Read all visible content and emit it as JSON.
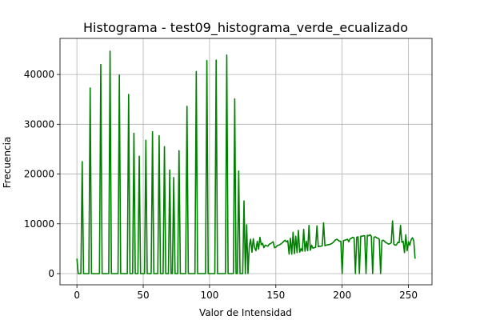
{
  "chart_data": {
    "type": "line",
    "title": "Histograma - test09_histograma_verde_ecualizado",
    "xlabel": "Valor de Intensidad",
    "ylabel": "Frecuencia",
    "xlim": [
      -12.75,
      267.75
    ],
    "ylim": [
      -2250,
      47250
    ],
    "xticks": [
      0,
      50,
      100,
      150,
      200,
      250
    ],
    "yticks": [
      0,
      10000,
      20000,
      30000,
      40000
    ],
    "grid": true,
    "colors": {
      "line": "#008000",
      "grid": "#b0b0b0",
      "axes": "#000000"
    },
    "series": [
      {
        "points": [
          [
            0,
            3000
          ],
          [
            1,
            0
          ],
          [
            2,
            0
          ],
          [
            3,
            0
          ],
          [
            4,
            22500
          ],
          [
            5,
            0
          ],
          [
            6,
            0
          ],
          [
            7,
            0
          ],
          [
            8,
            0
          ],
          [
            9,
            0
          ],
          [
            10,
            37300
          ],
          [
            11,
            0
          ],
          [
            12,
            0
          ],
          [
            13,
            0
          ],
          [
            14,
            0
          ],
          [
            15,
            0
          ],
          [
            16,
            0
          ],
          [
            17,
            0
          ],
          [
            18,
            42000
          ],
          [
            19,
            0
          ],
          [
            20,
            0
          ],
          [
            21,
            0
          ],
          [
            22,
            0
          ],
          [
            23,
            0
          ],
          [
            24,
            0
          ],
          [
            25,
            44700
          ],
          [
            26,
            0
          ],
          [
            27,
            0
          ],
          [
            28,
            0
          ],
          [
            29,
            0
          ],
          [
            30,
            0
          ],
          [
            31,
            0
          ],
          [
            32,
            39900
          ],
          [
            33,
            0
          ],
          [
            34,
            0
          ],
          [
            35,
            0
          ],
          [
            36,
            0
          ],
          [
            37,
            0
          ],
          [
            38,
            0
          ],
          [
            39,
            36000
          ],
          [
            40,
            0
          ],
          [
            41,
            0
          ],
          [
            42,
            0
          ],
          [
            43,
            28200
          ],
          [
            44,
            0
          ],
          [
            45,
            0
          ],
          [
            46,
            0
          ],
          [
            47,
            23600
          ],
          [
            48,
            0
          ],
          [
            49,
            0
          ],
          [
            50,
            0
          ],
          [
            51,
            0
          ],
          [
            52,
            26800
          ],
          [
            53,
            0
          ],
          [
            54,
            0
          ],
          [
            55,
            0
          ],
          [
            56,
            0
          ],
          [
            57,
            28500
          ],
          [
            58,
            0
          ],
          [
            59,
            0
          ],
          [
            60,
            0
          ],
          [
            61,
            0
          ],
          [
            62,
            27700
          ],
          [
            63,
            0
          ],
          [
            64,
            0
          ],
          [
            65,
            0
          ],
          [
            66,
            25500
          ],
          [
            67,
            0
          ],
          [
            68,
            0
          ],
          [
            69,
            0
          ],
          [
            70,
            20800
          ],
          [
            71,
            0
          ],
          [
            72,
            0
          ],
          [
            73,
            19300
          ],
          [
            74,
            0
          ],
          [
            75,
            0
          ],
          [
            76,
            0
          ],
          [
            77,
            24700
          ],
          [
            78,
            0
          ],
          [
            79,
            0
          ],
          [
            80,
            0
          ],
          [
            81,
            0
          ],
          [
            82,
            0
          ],
          [
            83,
            33600
          ],
          [
            84,
            0
          ],
          [
            85,
            0
          ],
          [
            86,
            0
          ],
          [
            87,
            0
          ],
          [
            88,
            0
          ],
          [
            89,
            0
          ],
          [
            90,
            40600
          ],
          [
            91,
            0
          ],
          [
            92,
            0
          ],
          [
            93,
            0
          ],
          [
            94,
            0
          ],
          [
            95,
            0
          ],
          [
            96,
            0
          ],
          [
            97,
            0
          ],
          [
            98,
            42800
          ],
          [
            99,
            0
          ],
          [
            100,
            0
          ],
          [
            101,
            0
          ],
          [
            102,
            0
          ],
          [
            103,
            0
          ],
          [
            104,
            0
          ],
          [
            105,
            42900
          ],
          [
            106,
            0
          ],
          [
            107,
            0
          ],
          [
            108,
            0
          ],
          [
            109,
            0
          ],
          [
            110,
            0
          ],
          [
            111,
            0
          ],
          [
            112,
            0
          ],
          [
            113,
            43900
          ],
          [
            114,
            0
          ],
          [
            115,
            0
          ],
          [
            116,
            0
          ],
          [
            117,
            0
          ],
          [
            118,
            0
          ],
          [
            119,
            35100
          ],
          [
            120,
            0
          ],
          [
            121,
            0
          ],
          [
            122,
            20600
          ],
          [
            123,
            0
          ],
          [
            124,
            0
          ],
          [
            125,
            0
          ],
          [
            126,
            14600
          ],
          [
            127,
            0
          ],
          [
            128,
            9800
          ],
          [
            129,
            0
          ],
          [
            130,
            5600
          ],
          [
            131,
            6900
          ],
          [
            132,
            4300
          ],
          [
            133,
            7000
          ],
          [
            134,
            5200
          ],
          [
            135,
            4600
          ],
          [
            136,
            6500
          ],
          [
            137,
            4900
          ],
          [
            138,
            7300
          ],
          [
            139,
            5800
          ],
          [
            140,
            6100
          ],
          [
            141,
            5200
          ],
          [
            142,
            5700
          ],
          [
            143,
            5600
          ],
          [
            144,
            5500
          ],
          [
            145,
            5900
          ],
          [
            146,
            6000
          ],
          [
            147,
            6200
          ],
          [
            148,
            6400
          ],
          [
            149,
            5200
          ],
          [
            150,
            5300
          ],
          [
            151,
            5600
          ],
          [
            152,
            5700
          ],
          [
            153,
            5800
          ],
          [
            154,
            6000
          ],
          [
            155,
            6200
          ],
          [
            156,
            6500
          ],
          [
            157,
            6700
          ],
          [
            158,
            6400
          ],
          [
            159,
            6600
          ],
          [
            160,
            3900
          ],
          [
            161,
            7100
          ],
          [
            162,
            3900
          ],
          [
            163,
            8300
          ],
          [
            164,
            4000
          ],
          [
            165,
            7500
          ],
          [
            166,
            4200
          ],
          [
            167,
            8700
          ],
          [
            168,
            4300
          ],
          [
            169,
            5000
          ],
          [
            170,
            4500
          ],
          [
            171,
            8900
          ],
          [
            172,
            4500
          ],
          [
            173,
            6500
          ],
          [
            174,
            4600
          ],
          [
            175,
            9700
          ],
          [
            176,
            4700
          ],
          [
            177,
            5700
          ],
          [
            178,
            5100
          ],
          [
            179,
            5200
          ],
          [
            180,
            5300
          ],
          [
            181,
            9600
          ],
          [
            182,
            5400
          ],
          [
            183,
            5500
          ],
          [
            184,
            5500
          ],
          [
            185,
            5600
          ],
          [
            186,
            10200
          ],
          [
            187,
            5600
          ],
          [
            188,
            5700
          ],
          [
            189,
            5800
          ],
          [
            190,
            5800
          ],
          [
            191,
            5900
          ],
          [
            192,
            6000
          ],
          [
            193,
            6200
          ],
          [
            194,
            6500
          ],
          [
            195,
            6800
          ],
          [
            196,
            6900
          ],
          [
            197,
            6700
          ],
          [
            198,
            6500
          ],
          [
            199,
            6500
          ],
          [
            200,
            0
          ],
          [
            201,
            6600
          ],
          [
            202,
            6700
          ],
          [
            203,
            6800
          ],
          [
            204,
            6900
          ],
          [
            205,
            6400
          ],
          [
            206,
            7000
          ],
          [
            207,
            7100
          ],
          [
            208,
            7300
          ],
          [
            209,
            7200
          ],
          [
            210,
            0
          ],
          [
            211,
            7300
          ],
          [
            212,
            7400
          ],
          [
            213,
            0
          ],
          [
            214,
            7500
          ],
          [
            215,
            7500
          ],
          [
            216,
            7600
          ],
          [
            217,
            7600
          ],
          [
            218,
            0
          ],
          [
            219,
            7700
          ],
          [
            220,
            7600
          ],
          [
            221,
            7800
          ],
          [
            222,
            7500
          ],
          [
            223,
            0
          ],
          [
            224,
            7300
          ],
          [
            225,
            7400
          ],
          [
            226,
            7200
          ],
          [
            227,
            7100
          ],
          [
            228,
            6900
          ],
          [
            229,
            0
          ],
          [
            230,
            6600
          ],
          [
            231,
            6700
          ],
          [
            232,
            6500
          ],
          [
            233,
            6200
          ],
          [
            234,
            6100
          ],
          [
            235,
            5900
          ],
          [
            236,
            6000
          ],
          [
            237,
            6200
          ],
          [
            238,
            10600
          ],
          [
            239,
            5900
          ],
          [
            240,
            5700
          ],
          [
            241,
            5800
          ],
          [
            242,
            6300
          ],
          [
            243,
            6200
          ],
          [
            244,
            9700
          ],
          [
            245,
            6300
          ],
          [
            246,
            6500
          ],
          [
            247,
            4200
          ],
          [
            248,
            7800
          ],
          [
            249,
            4600
          ],
          [
            250,
            6400
          ],
          [
            251,
            5700
          ],
          [
            252,
            6800
          ],
          [
            253,
            7200
          ],
          [
            254,
            6600
          ],
          [
            255,
            3000
          ]
        ]
      }
    ]
  }
}
